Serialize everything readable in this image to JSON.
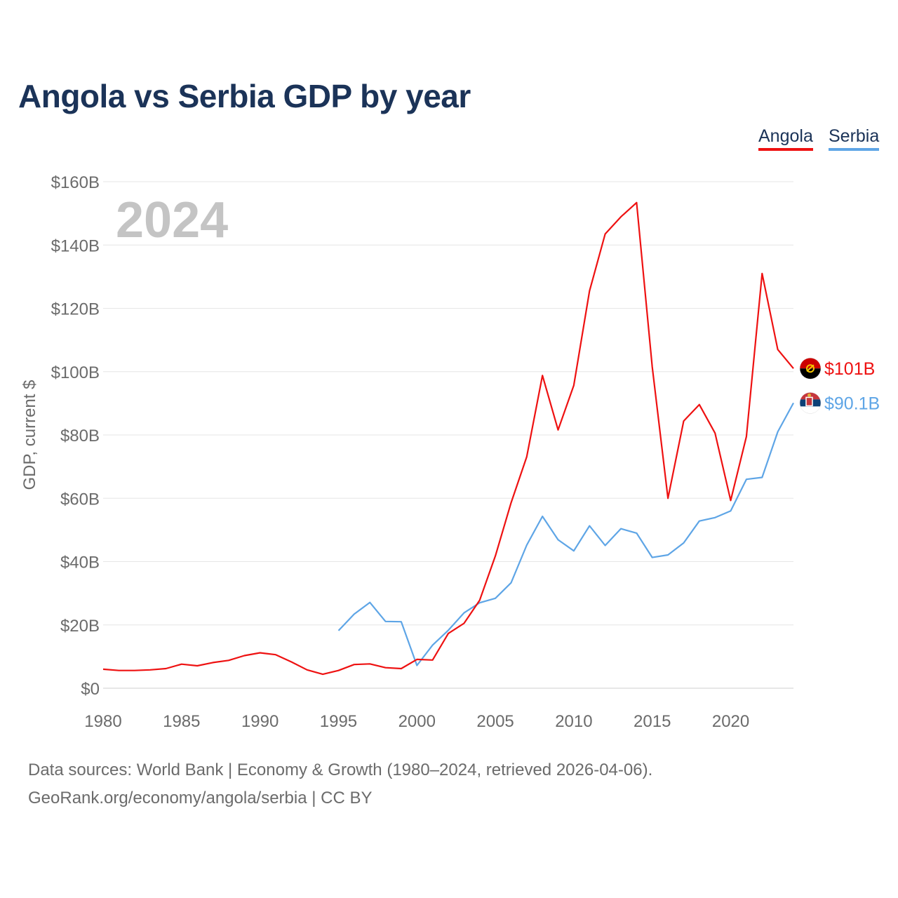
{
  "title": "Angola vs Serbia GDP by year",
  "legend": [
    {
      "name": "Angola",
      "color": "#ee1111"
    },
    {
      "name": "Serbia",
      "color": "#5ea5e6"
    }
  ],
  "year_watermark": "2024",
  "footer": {
    "source": "Data sources: World Bank | Economy & Growth (1980–2024, retrieved 2026-04-06).",
    "credit": "GeoRank.org/economy/angola/serbia | CC BY"
  },
  "chart_data": {
    "type": "line",
    "title": "Angola vs Serbia GDP by year",
    "xlabel": "",
    "ylabel": "GDP, current $",
    "xlim": [
      1980,
      2024
    ],
    "ylim": [
      0,
      160
    ],
    "y_unit": "billion current US$",
    "x_ticks": [
      1980,
      1985,
      1990,
      1995,
      2000,
      2005,
      2010,
      2015,
      2020
    ],
    "x_tick_labels": [
      "1980",
      "1985",
      "1990",
      "1995",
      "2000",
      "2005",
      "2010",
      "2015",
      "2020"
    ],
    "y_ticks": [
      0,
      20,
      40,
      60,
      80,
      100,
      120,
      140,
      160
    ],
    "y_tick_labels": [
      "$0",
      "$20B",
      "$40B",
      "$60B",
      "$80B",
      "$100B",
      "$120B",
      "$140B",
      "$160B"
    ],
    "grid": true,
    "legend_position": "top-right",
    "series": [
      {
        "name": "Angola",
        "color": "#ee1111",
        "end_label": "$101B",
        "x": [
          1980,
          1981,
          1982,
          1983,
          1984,
          1985,
          1986,
          1987,
          1988,
          1989,
          1990,
          1991,
          1992,
          1993,
          1994,
          1995,
          1996,
          1997,
          1998,
          1999,
          2000,
          2001,
          2002,
          2003,
          2004,
          2005,
          2006,
          2007,
          2008,
          2009,
          2010,
          2011,
          2012,
          2013,
          2014,
          2015,
          2016,
          2017,
          2018,
          2019,
          2020,
          2021,
          2022,
          2023,
          2024
        ],
        "values": [
          6.0,
          5.6,
          5.6,
          5.8,
          6.2,
          7.6,
          7.1,
          8.1,
          8.8,
          10.3,
          11.2,
          10.6,
          8.3,
          5.8,
          4.4,
          5.6,
          7.5,
          7.7,
          6.5,
          6.2,
          9.1,
          8.9,
          17.3,
          20.5,
          27.8,
          41.8,
          58.6,
          73.1,
          98.8,
          81.6,
          95.7,
          125.5,
          143.5,
          148.9,
          153.4,
          101.5,
          60.0,
          84.4,
          89.6,
          80.6,
          59.3,
          79.5,
          131.0,
          107.0,
          101.0
        ]
      },
      {
        "name": "Serbia",
        "color": "#5ea5e6",
        "end_label": "$90.1B",
        "x": [
          1995,
          1996,
          1997,
          1998,
          1999,
          2000,
          2001,
          2002,
          2003,
          2004,
          2005,
          2006,
          2007,
          2008,
          2009,
          2010,
          2011,
          2012,
          2013,
          2014,
          2015,
          2016,
          2017,
          2018,
          2019,
          2020,
          2021,
          2022,
          2023,
          2024
        ],
        "values": [
          18.2,
          23.4,
          27.1,
          21.1,
          21.0,
          7.2,
          13.6,
          18.3,
          23.8,
          27.0,
          28.4,
          33.3,
          45.2,
          54.3,
          46.9,
          43.4,
          51.3,
          45.1,
          50.4,
          49.0,
          41.3,
          42.1,
          45.9,
          52.8,
          53.9,
          56.0,
          66.0,
          66.6,
          81.0,
          90.1
        ]
      }
    ]
  }
}
